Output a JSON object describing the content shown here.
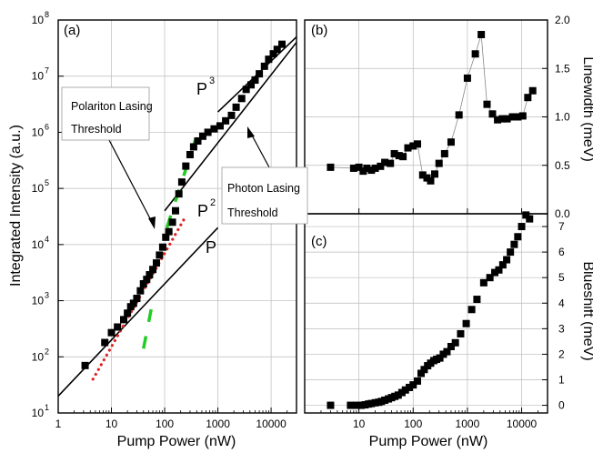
{
  "colors": {
    "marker": "#000000",
    "guide_line": "#000000",
    "green_fit": "#22cc22",
    "red_fit": "#dd2222",
    "grid": "#bbbbbb"
  },
  "chart_data": [
    {
      "panel": "a",
      "type": "scatter",
      "panel_label": "(a)",
      "xlabel": "Pump Power (nW)",
      "ylabel": "Integrated Intensity (a.u.)",
      "xscale": "log",
      "yscale": "log",
      "xlim": [
        1,
        30000
      ],
      "ylim": [
        10,
        100000000
      ],
      "x_tick_labels": [
        "1",
        "10",
        "100",
        "1000",
        "10000"
      ],
      "y_tick_labels": [
        "10",
        "10",
        "10",
        "10",
        "10",
        "10",
        "10",
        "10"
      ],
      "y_tick_exponents": [
        "1",
        "2",
        "3",
        "4",
        "5",
        "6",
        "7",
        "8"
      ],
      "grid": true,
      "series": [
        {
          "x": [
            3.2,
            7.5,
            10,
            13,
            17,
            20,
            23,
            26,
            30,
            35,
            40,
            46,
            52,
            60,
            70,
            80,
            92,
            105,
            120,
            140,
            160,
            185,
            210,
            250,
            300,
            350,
            420,
            520,
            650,
            850,
            1100,
            1400,
            1800,
            2200,
            2800,
            3400,
            4200,
            5000,
            6000,
            7500,
            9000,
            11000,
            13000,
            16000
          ],
          "y": [
            70,
            180,
            270,
            340,
            460,
            600,
            780,
            900,
            1100,
            1500,
            2000,
            2400,
            2900,
            3600,
            4700,
            6500,
            9000,
            13500,
            17000,
            25000,
            40000,
            80000,
            130000,
            250000,
            400000,
            550000,
            700000,
            850000,
            1000000,
            1150000,
            1300000,
            1600000,
            2000000,
            2800000,
            4000000,
            5800000,
            7000000,
            8500000,
            11000000,
            15000000,
            20000000,
            25000000,
            30000000,
            37000000
          ]
        }
      ],
      "guide_lines": [
        {
          "label": "P",
          "from": [
            1,
            20
          ],
          "to": [
            1000,
            20000
          ]
        },
        {
          "label": "P",
          "superscript": "2",
          "from": [
            100,
            40000
          ],
          "to": [
            30000,
            40000000
          ]
        },
        {
          "label": "P",
          "superscript": "3",
          "from": [
            1000,
            2300000
          ],
          "to": [
            30000,
            50000000
          ]
        }
      ],
      "fit_segments": [
        {
          "color": "green",
          "style": "dashed",
          "from": [
            40,
            140
          ],
          "to": [
            60,
            1000
          ]
        },
        {
          "color": "green",
          "style": "dashed",
          "from": [
            110,
            20000
          ],
          "to": [
            420,
            1000000
          ]
        },
        {
          "color": "red",
          "style": "dotted",
          "from": [
            4.5,
            40
          ],
          "to": [
            230,
            28000
          ]
        }
      ],
      "annotations": [
        {
          "text_lines": [
            "Polariton Lasing",
            "Threshold"
          ]
        },
        {
          "text_lines": [
            "Photon Lasing",
            "Threshold"
          ]
        }
      ]
    },
    {
      "panel": "b",
      "type": "line",
      "panel_label": "(b)",
      "xlabel": "",
      "ylabel": "Linewidth (meV)",
      "xscale": "log",
      "xlim": [
        1,
        30000
      ],
      "ylim": [
        0.0,
        2.0
      ],
      "y_tick_labels": [
        "0.0",
        "0.5",
        "1.0",
        "1.5",
        "2.0"
      ],
      "grid": true,
      "series": [
        {
          "x": [
            3,
            8,
            10,
            12,
            14,
            17,
            20,
            25,
            30,
            38,
            45,
            55,
            65,
            80,
            100,
            120,
            150,
            180,
            210,
            250,
            300,
            380,
            500,
            700,
            1000,
            1400,
            1800,
            2300,
            2900,
            3600,
            4400,
            5400,
            6800,
            8500,
            10500,
            13000,
            16000
          ],
          "y": [
            0.48,
            0.47,
            0.48,
            0.44,
            0.47,
            0.45,
            0.47,
            0.49,
            0.53,
            0.52,
            0.62,
            0.6,
            0.59,
            0.68,
            0.7,
            0.72,
            0.4,
            0.37,
            0.34,
            0.41,
            0.52,
            0.62,
            0.74,
            1.02,
            1.4,
            1.65,
            1.85,
            1.13,
            1.03,
            0.97,
            0.98,
            0.98,
            1.0,
            1.0,
            1.01,
            1.2,
            1.27
          ]
        }
      ]
    },
    {
      "panel": "c",
      "type": "scatter",
      "panel_label": "(c)",
      "xlabel": "Pump Power (nW)",
      "ylabel": "Blueshift (meV)",
      "xscale": "log",
      "xlim": [
        1,
        30000
      ],
      "ylim": [
        -0.3,
        7.5
      ],
      "x_tick_labels": [
        "10",
        "100",
        "1000",
        "10000"
      ],
      "y_tick_labels": [
        "0",
        "1",
        "2",
        "3",
        "4",
        "5",
        "6",
        "7"
      ],
      "grid": true,
      "series": [
        {
          "x": [
            3,
            7,
            9,
            11,
            13,
            15,
            17,
            20,
            23,
            26,
            30,
            35,
            40,
            46,
            53,
            62,
            72,
            85,
            100,
            120,
            140,
            160,
            185,
            210,
            240,
            270,
            310,
            360,
            420,
            500,
            600,
            750,
            950,
            1200,
            1500,
            2000,
            2600,
            3200,
            3800,
            4500,
            5300,
            6200,
            7300,
            8500,
            10000,
            12000,
            14000
          ],
          "y": [
            0.0,
            0.0,
            0.0,
            0.0,
            0.02,
            0.05,
            0.07,
            0.1,
            0.12,
            0.15,
            0.2,
            0.25,
            0.3,
            0.35,
            0.4,
            0.5,
            0.6,
            0.7,
            0.8,
            0.95,
            1.25,
            1.4,
            1.55,
            1.65,
            1.75,
            1.8,
            1.85,
            2.0,
            2.1,
            2.3,
            2.45,
            2.8,
            3.2,
            3.75,
            4.15,
            4.8,
            5.0,
            5.2,
            5.3,
            5.5,
            5.7,
            6.0,
            6.3,
            6.6,
            7.0,
            7.45,
            7.3
          ]
        }
      ]
    }
  ]
}
